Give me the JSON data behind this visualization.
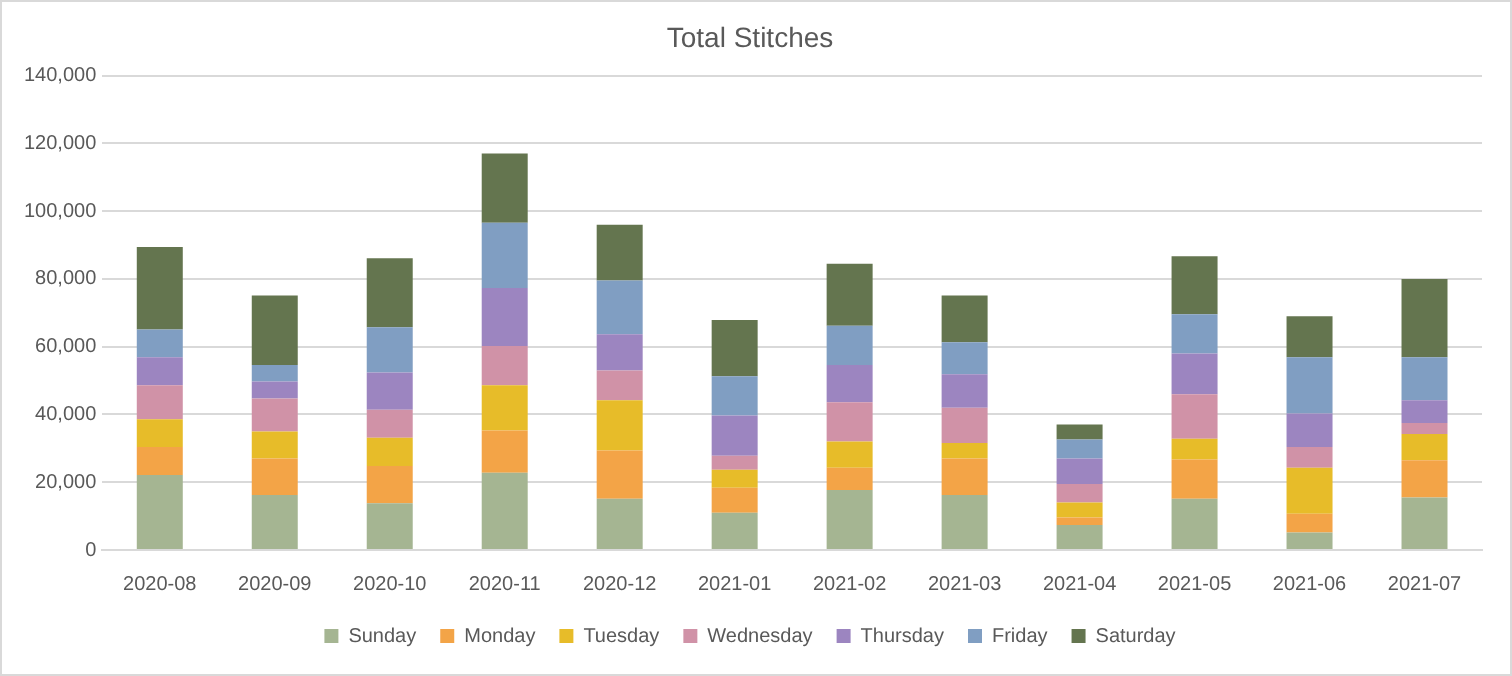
{
  "chart_data": {
    "type": "bar",
    "title": "Total Stitches",
    "stacked": true,
    "categories": [
      "2020-08",
      "2020-09",
      "2020-10",
      "2020-11",
      "2020-12",
      "2021-01",
      "2021-02",
      "2021-03",
      "2021-04",
      "2021-05",
      "2021-06",
      "2021-07"
    ],
    "series": [
      {
        "name": "Sunday",
        "color": "#a5b592",
        "values": [
          22100,
          16200,
          13800,
          22800,
          15100,
          11000,
          17700,
          16200,
          7400,
          15100,
          5200,
          15500
        ]
      },
      {
        "name": "Monday",
        "color": "#f3a447",
        "values": [
          8300,
          10800,
          11000,
          12500,
          14300,
          7400,
          6600,
          10800,
          2200,
          11600,
          5500,
          11000
        ]
      },
      {
        "name": "Tuesday",
        "color": "#e7bc29",
        "values": [
          8200,
          8000,
          8300,
          13300,
          14800,
          5300,
          7700,
          4600,
          4400,
          6100,
          13600,
          7700
        ]
      },
      {
        "name": "Wednesday",
        "color": "#d092a7",
        "values": [
          10000,
          9700,
          8300,
          11600,
          8800,
          4100,
          11600,
          10400,
          5500,
          13200,
          6100,
          3300
        ]
      },
      {
        "name": "Thursday",
        "color": "#9c85c0",
        "values": [
          8300,
          5000,
          11000,
          17100,
          10700,
          11900,
          11000,
          9900,
          7500,
          12000,
          9900,
          6700
        ]
      },
      {
        "name": "Friday",
        "color": "#809ec2",
        "values": [
          8200,
          4900,
          13300,
          19300,
          15800,
          11600,
          11600,
          9400,
          5600,
          11600,
          16600,
          12700
        ]
      },
      {
        "name": "Saturday",
        "color": "#64754f",
        "values": [
          24300,
          20500,
          20400,
          20400,
          16500,
          16600,
          18300,
          13800,
          4400,
          17100,
          12100,
          23100
        ]
      }
    ],
    "ylim": [
      0,
      140000
    ],
    "yticks": [
      {
        "value": 0,
        "label": "0"
      },
      {
        "value": 20000,
        "label": "20,000"
      },
      {
        "value": 40000,
        "label": "40,000"
      },
      {
        "value": 60000,
        "label": "60,000"
      },
      {
        "value": 80000,
        "label": "80,000"
      },
      {
        "value": 100000,
        "label": "100,000"
      },
      {
        "value": 120000,
        "label": "120,000"
      },
      {
        "value": 140000,
        "label": "140,000"
      }
    ],
    "grid": "y",
    "legend": "bottom"
  }
}
